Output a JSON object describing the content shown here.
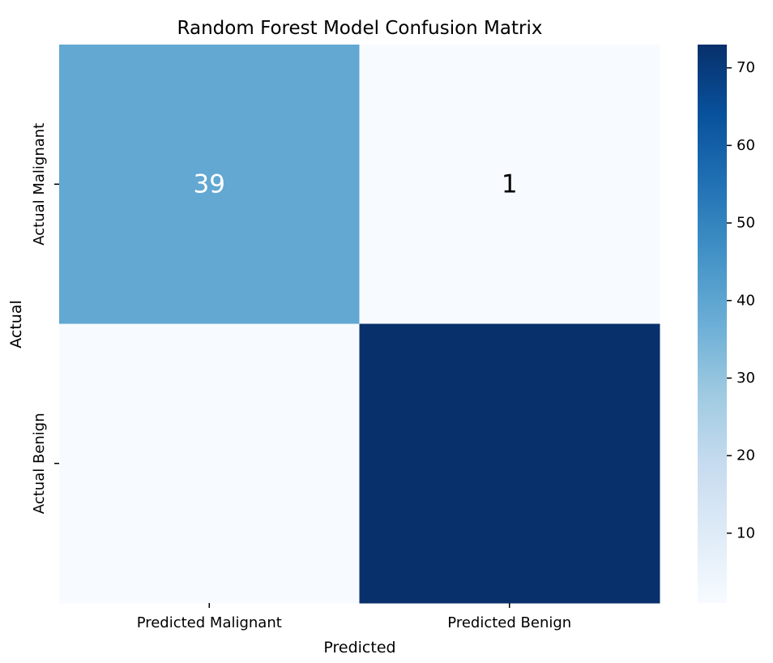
{
  "chart_data": {
    "type": "heatmap",
    "title": "Random Forest Model Confusion Matrix",
    "xlabel": "Predicted",
    "ylabel": "Actual",
    "x_categories": [
      "Predicted Malignant",
      "Predicted Benign"
    ],
    "y_categories": [
      "Actual Malignant",
      "Actual Benign"
    ],
    "values": [
      [
        39,
        1
      ],
      [
        1,
        73
      ]
    ],
    "annotations": [
      [
        "39",
        "1"
      ],
      [
        "",
        ""
      ]
    ],
    "colormap": "Blues",
    "colorbar": {
      "range": [
        1,
        73
      ],
      "ticks": [
        10,
        20,
        30,
        40,
        50,
        60,
        70
      ],
      "tick_labels": [
        "10",
        "20",
        "30",
        "40",
        "50",
        "60",
        "70"
      ]
    },
    "colors": {
      "cell_matrix": [
        [
          "#62a8d2",
          "#f7fbff"
        ],
        [
          "#f7fbff",
          "#08306b"
        ]
      ],
      "text_light": "#ffffff",
      "text_dark": "#000000"
    },
    "grid": false
  }
}
